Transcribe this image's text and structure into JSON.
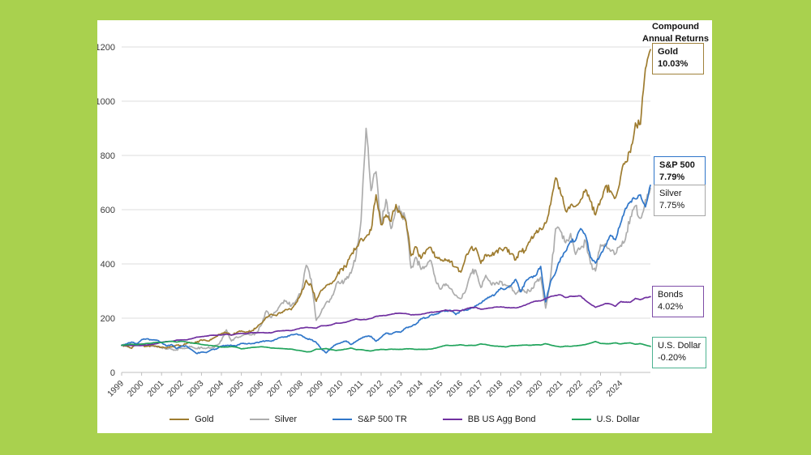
{
  "frame": {
    "background": "#A9D14E",
    "panel_background": "#FFFFFF"
  },
  "header": {
    "line1": "Compound",
    "line2": "Annual Returns"
  },
  "chart_data": {
    "type": "line",
    "title": "Compound Annual Returns",
    "xlabel": "",
    "ylabel": "",
    "x_range": [
      1999,
      2025.5
    ],
    "y_range": [
      0,
      1280
    ],
    "grid": "horizontal",
    "legend_position": "bottom",
    "y_ticks": [
      0,
      200,
      400,
      600,
      800,
      1000,
      1200
    ],
    "x_ticks": [
      1999,
      2000,
      2001,
      2002,
      2003,
      2004,
      2005,
      2006,
      2007,
      2008,
      2009,
      2010,
      2011,
      2012,
      2013,
      2014,
      2015,
      2016,
      2017,
      2018,
      2019,
      2020,
      2021,
      2022,
      2023,
      2024
    ],
    "x": [
      1999,
      1999.25,
      1999.5,
      1999.75,
      2000,
      2000.25,
      2000.5,
      2000.75,
      2001,
      2001.25,
      2001.5,
      2001.75,
      2002,
      2002.25,
      2002.5,
      2002.75,
      2003,
      2003.25,
      2003.5,
      2003.75,
      2004,
      2004.25,
      2004.5,
      2004.75,
      2005,
      2005.25,
      2005.5,
      2005.75,
      2006,
      2006.25,
      2006.5,
      2006.75,
      2007,
      2007.25,
      2007.5,
      2007.75,
      2008,
      2008.25,
      2008.5,
      2008.75,
      2009,
      2009.25,
      2009.5,
      2009.75,
      2010,
      2010.25,
      2010.5,
      2010.75,
      2011,
      2011.25,
      2011.5,
      2011.75,
      2012,
      2012.25,
      2012.5,
      2012.75,
      2013,
      2013.25,
      2013.5,
      2013.75,
      2014,
      2014.25,
      2014.5,
      2014.75,
      2015,
      2015.25,
      2015.5,
      2015.75,
      2016,
      2016.25,
      2016.5,
      2016.75,
      2017,
      2017.25,
      2017.5,
      2017.75,
      2018,
      2018.25,
      2018.5,
      2018.75,
      2019,
      2019.25,
      2019.5,
      2019.75,
      2020,
      2020.25,
      2020.5,
      2020.75,
      2021,
      2021.25,
      2021.5,
      2021.75,
      2022,
      2022.25,
      2022.5,
      2022.75,
      2023,
      2023.25,
      2023.5,
      2023.75,
      2024,
      2024.25,
      2024.5,
      2024.75,
      2025,
      2025.25,
      2025.5
    ],
    "series": [
      {
        "name": "Gold",
        "color": "#9E7C2F",
        "volatility_hint": 7,
        "values": [
          100,
          98,
          89,
          105,
          101,
          96,
          99,
          95,
          93,
          90,
          94,
          101,
          97,
          106,
          110,
          111,
          120,
          117,
          121,
          133,
          143,
          147,
          137,
          146,
          153,
          149,
          152,
          165,
          181,
          204,
          215,
          209,
          221,
          232,
          231,
          258,
          291,
          340,
          322,
          262,
          303,
          321,
          327,
          350,
          382,
          388,
          434,
          457,
          494,
          500,
          524,
          655,
          545,
          581,
          557,
          619,
          583,
          556,
          430,
          463,
          420,
          449,
          461,
          423,
          413,
          413,
          409,
          389,
          370,
          430,
          459,
          459,
          402,
          435,
          432,
          446,
          455,
          461,
          437,
          415,
          447,
          450,
          491,
          513,
          530,
          550,
          620,
          717,
          660,
          596,
          617,
          612,
          637,
          674,
          630,
          581,
          635,
          687,
          669,
          644,
          719,
          777,
          811,
          920,
          915,
          1120,
          1190
        ]
      },
      {
        "name": "Silver",
        "color": "#ADADAD",
        "volatility_hint": 9,
        "values": [
          100,
          101,
          103,
          106,
          106,
          100,
          98,
          96,
          91,
          86,
          85,
          83,
          90,
          90,
          96,
          88,
          93,
          89,
          90,
          100,
          117,
          157,
          116,
          131,
          134,
          141,
          138,
          146,
          174,
          227,
          202,
          226,
          254,
          263,
          245,
          266,
          294,
          395,
          344,
          192,
          222,
          258,
          272,
          325,
          331,
          343,
          366,
          430,
          560,
          900,
          670,
          740,
          546,
          638,
          530,
          610,
          594,
          560,
          385,
          425,
          380,
          390,
          412,
          335,
          307,
          327,
          308,
          285,
          272,
          303,
          366,
          376,
          313,
          358,
          327,
          329,
          335,
          321,
          317,
          288,
          305,
          297,
          300,
          334,
          351,
          237,
          353,
          530,
          520,
          478,
          512,
          435,
          458,
          486,
          400,
          374,
          471,
          474,
          447,
          437,
          468,
          492,
          574,
          614,
          568,
          636,
          679
        ]
      },
      {
        "name": "S&P 500 TR",
        "color": "#2F76C9",
        "volatility_hint": 4,
        "values": [
          100,
          105,
          112,
          105,
          121,
          124,
          120,
          119,
          110,
          97,
          103,
          88,
          97,
          97,
          84,
          70,
          75,
          73,
          84,
          86,
          97,
          99,
          100,
          98,
          107,
          105,
          106,
          110,
          113,
          117,
          115,
          122,
          130,
          131,
          139,
          142,
          137,
          125,
          121,
          111,
          87,
          72,
          90,
          104,
          110,
          116,
          103,
          115,
          126,
          133,
          133,
          115,
          129,
          145,
          141,
          150,
          149,
          165,
          169,
          178,
          198,
          201,
          212,
          214,
          225,
          227,
          228,
          213,
          228,
          230,
          236,
          245,
          255,
          271,
          279,
          291,
          311,
          308,
          319,
          343,
          297,
          336,
          351,
          357,
          391,
          260,
          336,
          368,
          421,
          446,
          484,
          487,
          530,
          505,
          424,
          403,
          435,
          467,
          506,
          489,
          548,
          605,
          630,
          640,
          655,
          610,
          690
        ]
      },
      {
        "name": "BB US Agg Bond",
        "color": "#7030A0",
        "volatility_hint": 1.2,
        "values": [
          100,
          100,
          99,
          99,
          99,
          101,
          103,
          106,
          111,
          114,
          114,
          119,
          120,
          120,
          124,
          130,
          132,
          134,
          137,
          137,
          138,
          141,
          138,
          142,
          144,
          143,
          147,
          146,
          147,
          146,
          146,
          152,
          153,
          155,
          154,
          159,
          164,
          166,
          165,
          163,
          172,
          172,
          175,
          182,
          182,
          185,
          192,
          197,
          194,
          195,
          199,
          207,
          209,
          210,
          214,
          218,
          218,
          217,
          212,
          213,
          214,
          218,
          222,
          223,
          226,
          230,
          226,
          229,
          227,
          234,
          239,
          240,
          233,
          235,
          238,
          241,
          242,
          239,
          238,
          238,
          242,
          249,
          257,
          263,
          264,
          272,
          280,
          284,
          286,
          276,
          281,
          281,
          282,
          265,
          252,
          240,
          247,
          254,
          252,
          244,
          261,
          259,
          259,
          273,
          268,
          276,
          279
        ]
      },
      {
        "name": "U.S. Dollar",
        "color": "#21A45C",
        "volatility_hint": 1.2,
        "values": [
          100,
          102,
          104,
          102,
          104,
          107,
          108,
          111,
          110,
          113,
          115,
          112,
          115,
          112,
          108,
          107,
          103,
          101,
          99,
          97,
          93,
          94,
          95,
          93,
          87,
          89,
          92,
          93,
          95,
          93,
          90,
          89,
          88,
          87,
          86,
          82,
          80,
          76,
          77,
          86,
          86,
          88,
          84,
          81,
          83,
          86,
          90,
          84,
          84,
          81,
          79,
          83,
          85,
          84,
          86,
          85,
          85,
          87,
          87,
          85,
          85,
          85,
          86,
          90,
          95,
          100,
          99,
          100,
          102,
          99,
          100,
          100,
          105,
          103,
          99,
          97,
          96,
          94,
          98,
          99,
          100,
          101,
          100,
          102,
          101,
          106,
          101,
          97,
          94,
          97,
          96,
          98,
          100,
          103,
          108,
          114,
          107,
          106,
          106,
          109,
          105,
          108,
          109,
          104,
          106,
          101,
          96
        ]
      }
    ],
    "annotations": [
      {
        "label": "Gold",
        "value": "10.03%",
        "color": "#A0823C",
        "bold": true
      },
      {
        "label": "S&P 500",
        "value": "7.79%",
        "color": "#2E75C9",
        "bold": true
      },
      {
        "label": "Silver",
        "value": "7.75%",
        "color": "#A6A6A6",
        "bold": false
      },
      {
        "label": "Bonds",
        "value": "4.02%",
        "color": "#7E4DA7",
        "bold": false
      },
      {
        "label": "U.S. Dollar",
        "value": "-0.20%",
        "color": "#4DB391",
        "bold": false
      }
    ]
  }
}
